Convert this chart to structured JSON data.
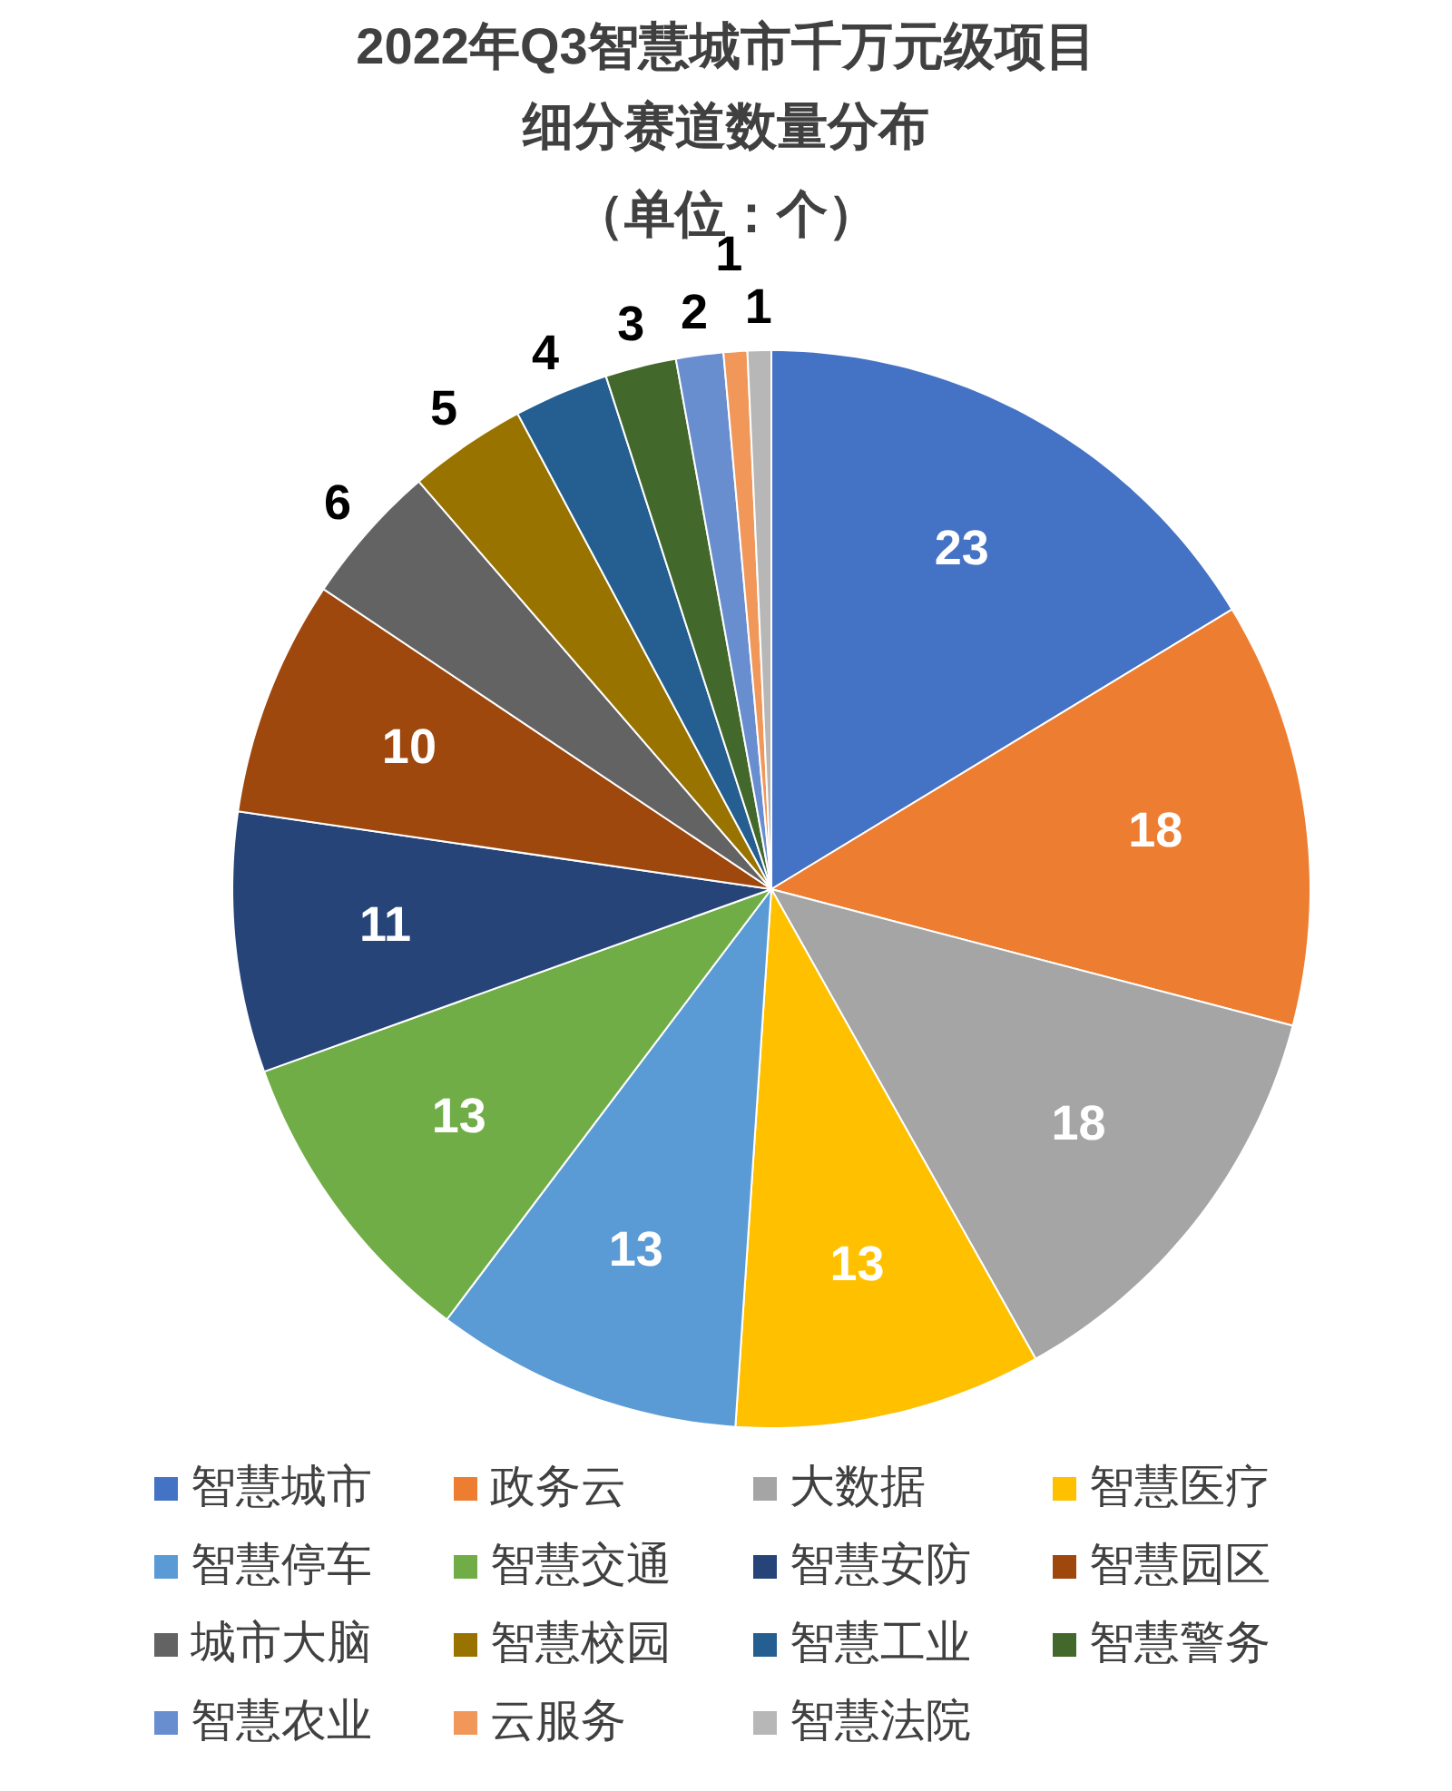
{
  "chart_data": {
    "type": "pie",
    "title": "2022年Q3智慧城市千万元级项目细分赛道数量分布",
    "subtitle": "（单位：个）",
    "categories": [
      "智慧城市",
      "政务云",
      "大数据",
      "智慧医疗",
      "智慧停车",
      "智慧交通",
      "智慧安防",
      "智慧园区",
      "城市大脑",
      "智慧校园",
      "智慧工业",
      "智慧警务",
      "智慧农业",
      "云服务",
      "智慧法院"
    ],
    "values": [
      23,
      18,
      18,
      13,
      13,
      13,
      11,
      10,
      6,
      5,
      4,
      3,
      2,
      1,
      1
    ],
    "colors": [
      "#4472c4",
      "#ed7d31",
      "#a5a5a5",
      "#ffc000",
      "#5b9bd5",
      "#70ad47",
      "#264478",
      "#9e480e",
      "#636363",
      "#997300",
      "#255e91",
      "#43682b",
      "#698ed0",
      "#f1975a",
      "#b7b7b7"
    ],
    "data_labels": true,
    "legend": "bottom"
  }
}
